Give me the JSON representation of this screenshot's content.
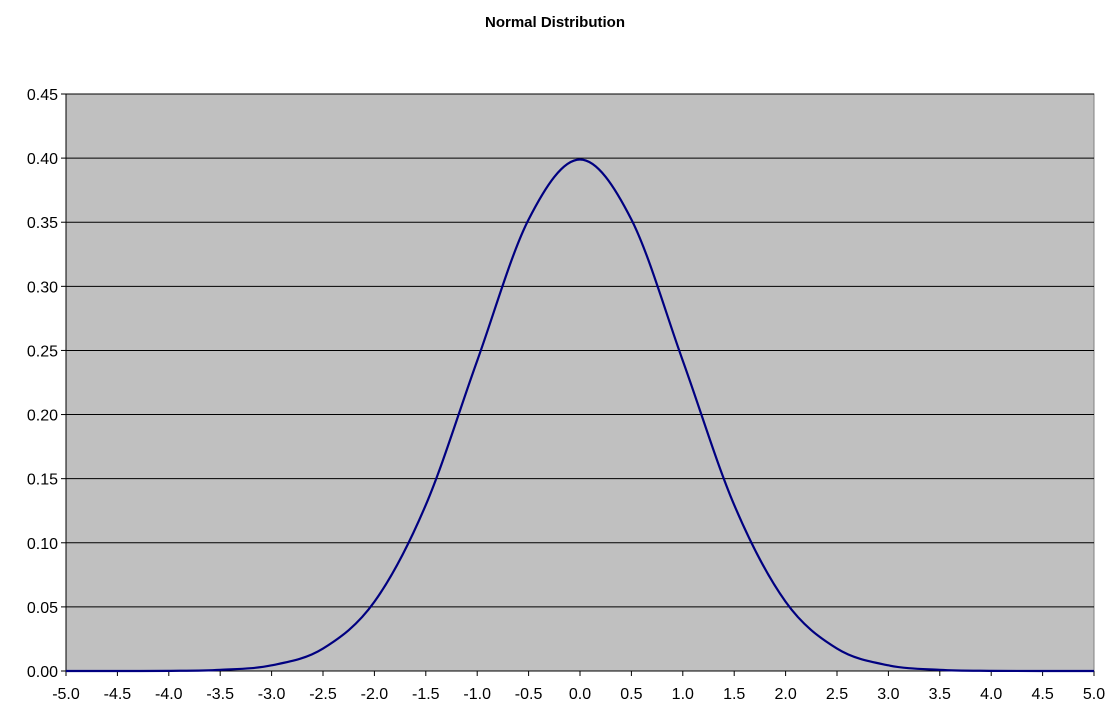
{
  "chart_data": {
    "type": "line",
    "title": "Normal Distribution",
    "xlabel": "",
    "ylabel": "",
    "xlim": [
      -5.0,
      5.0
    ],
    "ylim": [
      0.0,
      0.45
    ],
    "x_ticks": [
      "-5.0",
      "-4.5",
      "-4.0",
      "-3.5",
      "-3.0",
      "-2.5",
      "-2.0",
      "-1.5",
      "-1.0",
      "-0.5",
      "0.0",
      "0.5",
      "1.0",
      "1.5",
      "2.0",
      "2.5",
      "3.0",
      "3.5",
      "4.0",
      "4.5",
      "5.0"
    ],
    "y_ticks": [
      "0.00",
      "0.05",
      "0.10",
      "0.15",
      "0.20",
      "0.25",
      "0.30",
      "0.35",
      "0.40",
      "0.45"
    ],
    "grid": "horizontal",
    "legend": "none",
    "colors": {
      "plot_background": "#c0c0c0",
      "line": "#000080",
      "gridline": "#000000"
    },
    "series": [
      {
        "x": [
          -5.0,
          -4.5,
          -4.0,
          -3.5,
          -3.0,
          -2.5,
          -2.0,
          -1.5,
          -1.0,
          -0.5,
          0.0,
          0.5,
          1.0,
          1.5,
          2.0,
          2.5,
          3.0,
          3.5,
          4.0,
          4.5,
          5.0
        ],
        "y": [
          0.0,
          0.0,
          0.0001,
          0.0009,
          0.0044,
          0.0175,
          0.054,
          0.1295,
          0.242,
          0.3521,
          0.3989,
          0.3521,
          0.242,
          0.1295,
          0.054,
          0.0175,
          0.0044,
          0.0009,
          0.0001,
          0.0,
          0.0
        ]
      }
    ]
  }
}
